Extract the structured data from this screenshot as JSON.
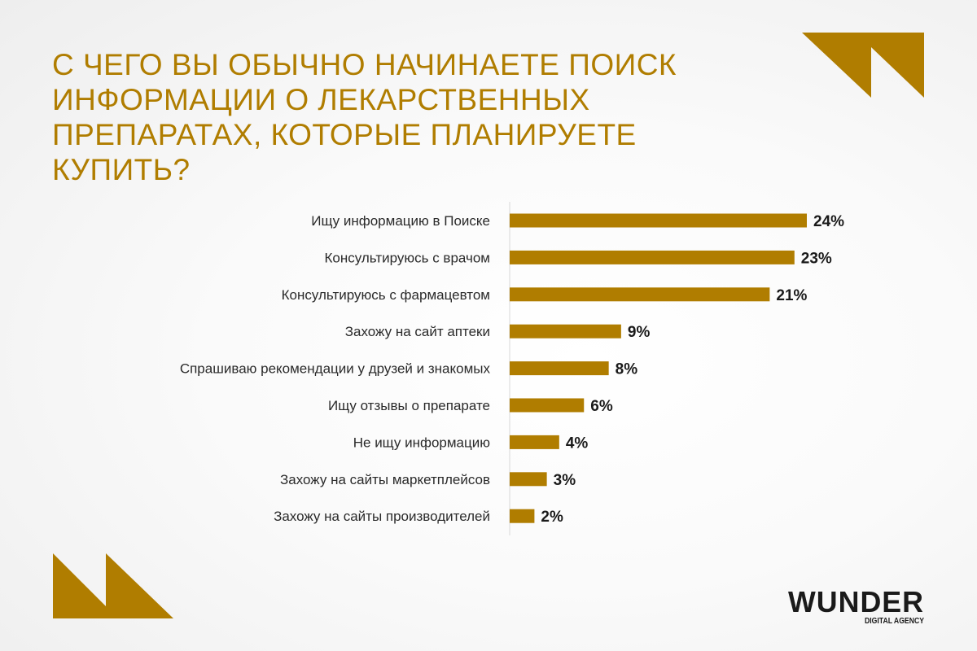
{
  "title": "С ЧЕГО ВЫ ОБЫЧНО НАЧИНАЕТЕ ПОИСК ИНФОРМАЦИИ О ЛЕКАРСТВЕННЫХ ПРЕПАРАТАХ, КОТОРЫЕ ПЛАНИРУЕТЕ КУПИТЬ?",
  "logo": {
    "name": "WUNDER",
    "subtitle": "DIGITAL AGENCY"
  },
  "colors": {
    "accent": "#b07d00",
    "text": "#2a2a2a"
  },
  "chart_data": {
    "type": "bar",
    "orientation": "horizontal",
    "title": "С ЧЕГО ВЫ ОБЫЧНО НАЧИНАЕТЕ ПОИСК ИНФОРМАЦИИ О ЛЕКАРСТВЕННЫХ ПРЕПАРАТАХ, КОТОРЫЕ ПЛАНИРУЕТЕ КУПИТЬ?",
    "categories": [
      "Ищу информацию в Поиске",
      "Консультируюсь с врачом",
      "Консультируюсь с фармацевтом",
      "Захожу на сайт аптеки",
      "Спрашиваю рекомендации у друзей и знакомых",
      "Ищу отзывы о препарате",
      "Не ищу информацию",
      "Захожу на сайты маркетплейсов",
      "Захожу на сайты производителей"
    ],
    "values": [
      24,
      23,
      21,
      9,
      8,
      6,
      4,
      3,
      2
    ],
    "labels": [
      "24%",
      "23%",
      "21%",
      "9%",
      "8%",
      "6%",
      "4%",
      "3%",
      "2%"
    ],
    "unit": "%",
    "xlim": [
      0,
      24
    ],
    "grid": false
  }
}
